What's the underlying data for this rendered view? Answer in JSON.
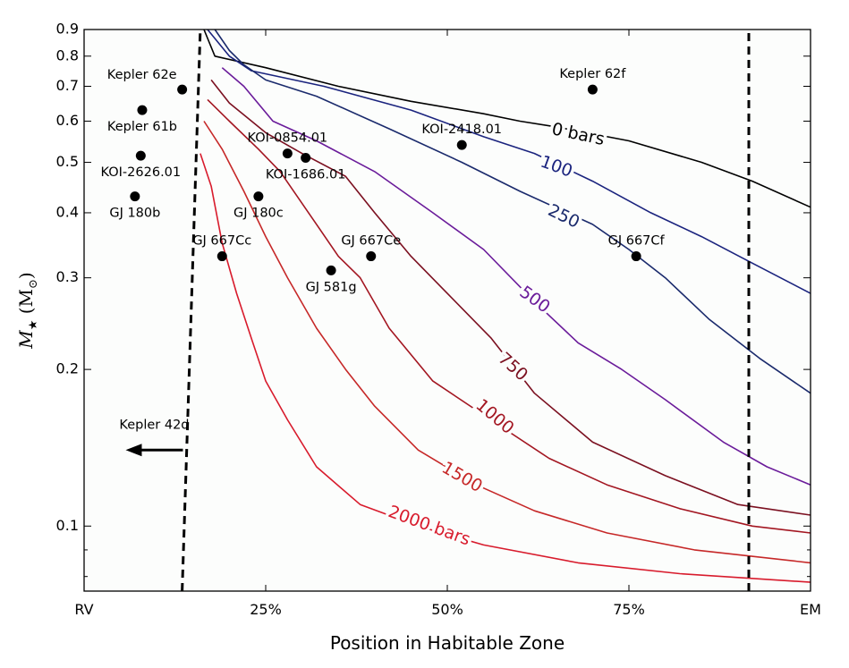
{
  "chart_data": {
    "type": "line",
    "xlabel": "Position in Habitable Zone",
    "ylabel": "M",
    "ylabel_subscript": "★",
    "ylabel_unit": "(M",
    "ylabel_unit_subscript": "⊙",
    "ylabel_unit_close": ")",
    "x_range": [
      0,
      100
    ],
    "y_range": [
      0.075,
      0.9
    ],
    "y_scale": "log",
    "x_ticks": [
      {
        "value": 0,
        "label": "RV"
      },
      {
        "value": 25,
        "label": "25%"
      },
      {
        "value": 50,
        "label": "50%"
      },
      {
        "value": 75,
        "label": "75%"
      },
      {
        "value": 100,
        "label": "EM"
      }
    ],
    "y_major_ticks": [
      {
        "value": 0.1,
        "label": "0.1"
      },
      {
        "value": 0.2,
        "label": "0.2"
      },
      {
        "value": 0.3,
        "label": "0.3"
      },
      {
        "value": 0.4,
        "label": "0.4"
      },
      {
        "value": 0.5,
        "label": "0.5"
      },
      {
        "value": 0.6,
        "label": "0.6"
      },
      {
        "value": 0.7,
        "label": "0.7"
      },
      {
        "value": 0.8,
        "label": "0.8"
      },
      {
        "value": 0.9,
        "label": "0.9"
      }
    ],
    "y_minor_ticks": [
      0.08,
      0.09
    ],
    "boundaries": [
      {
        "name": "inner-edge",
        "style": "dashed",
        "points": [
          [
            13.5,
            0.075
          ],
          [
            16,
            0.9
          ]
        ]
      },
      {
        "name": "outer-edge",
        "style": "dashed",
        "points": [
          [
            91.5,
            0.075
          ],
          [
            91.5,
            0.9
          ]
        ]
      }
    ],
    "series": [
      {
        "name": "0 bars",
        "label": "0 bars",
        "color": "#000000",
        "label_at": [
          68,
          0.565
        ],
        "label_rotation": 12,
        "points": [
          [
            16.5,
            0.9
          ],
          [
            18,
            0.8
          ],
          [
            25,
            0.76
          ],
          [
            35,
            0.7
          ],
          [
            45,
            0.655
          ],
          [
            55,
            0.62
          ],
          [
            60,
            0.6
          ],
          [
            65,
            0.585
          ],
          [
            75,
            0.55
          ],
          [
            85,
            0.5
          ],
          [
            92,
            0.46
          ],
          [
            100,
            0.41
          ]
        ]
      },
      {
        "name": "100",
        "label": "100",
        "color": "#1a237e",
        "label_at": [
          65,
          0.49
        ],
        "label_rotation": 20,
        "points": [
          [
            17,
            0.9
          ],
          [
            20,
            0.8
          ],
          [
            23,
            0.75
          ],
          [
            33,
            0.7
          ],
          [
            45,
            0.63
          ],
          [
            55,
            0.56
          ],
          [
            62,
            0.52
          ],
          [
            70,
            0.46
          ],
          [
            78,
            0.4
          ],
          [
            85,
            0.36
          ],
          [
            92,
            0.32
          ],
          [
            100,
            0.28
          ]
        ]
      },
      {
        "name": "250",
        "label": "250",
        "color": "#1a2a6c",
        "label_at": [
          66,
          0.393
        ],
        "label_rotation": 26,
        "points": [
          [
            18,
            0.9
          ],
          [
            20,
            0.82
          ],
          [
            22,
            0.77
          ],
          [
            25,
            0.72
          ],
          [
            32,
            0.67
          ],
          [
            42,
            0.58
          ],
          [
            52,
            0.5
          ],
          [
            60,
            0.44
          ],
          [
            70,
            0.38
          ],
          [
            75,
            0.34
          ],
          [
            80,
            0.3
          ],
          [
            86,
            0.25
          ],
          [
            93,
            0.21
          ],
          [
            100,
            0.18
          ]
        ]
      },
      {
        "name": "500",
        "label": "500",
        "color": "#6a1b9a",
        "label_at": [
          62,
          0.272
        ],
        "label_rotation": 36,
        "points": [
          [
            19,
            0.76
          ],
          [
            22,
            0.7
          ],
          [
            26,
            0.6
          ],
          [
            32,
            0.55
          ],
          [
            40,
            0.48
          ],
          [
            48,
            0.4
          ],
          [
            55,
            0.34
          ],
          [
            62,
            0.27
          ],
          [
            68,
            0.225
          ],
          [
            74,
            0.2
          ],
          [
            80,
            0.175
          ],
          [
            88,
            0.145
          ],
          [
            94,
            0.13
          ],
          [
            100,
            0.12
          ]
        ]
      },
      {
        "name": "750",
        "label": "750",
        "color": "#7b1020",
        "label_at": [
          59,
          0.202
        ],
        "label_rotation": 42,
        "points": [
          [
            17.5,
            0.72
          ],
          [
            20,
            0.65
          ],
          [
            25,
            0.57
          ],
          [
            30,
            0.52
          ],
          [
            36,
            0.47
          ],
          [
            40,
            0.4
          ],
          [
            45,
            0.33
          ],
          [
            50,
            0.28
          ],
          [
            56,
            0.23
          ],
          [
            62,
            0.18
          ],
          [
            70,
            0.145
          ],
          [
            80,
            0.125
          ],
          [
            90,
            0.11
          ],
          [
            100,
            0.105
          ]
        ]
      },
      {
        "name": "1000",
        "label": "1000",
        "color": "#a31621",
        "label_at": [
          56.5,
          0.162
        ],
        "label_rotation": 40,
        "points": [
          [
            17,
            0.66
          ],
          [
            20,
            0.6
          ],
          [
            24,
            0.53
          ],
          [
            27,
            0.48
          ],
          [
            32,
            0.38
          ],
          [
            35,
            0.33
          ],
          [
            38,
            0.3
          ],
          [
            42,
            0.24
          ],
          [
            48,
            0.19
          ],
          [
            56,
            0.16
          ],
          [
            64,
            0.135
          ],
          [
            72,
            0.12
          ],
          [
            82,
            0.108
          ],
          [
            92,
            0.1
          ],
          [
            100,
            0.097
          ]
        ]
      },
      {
        "name": "1500",
        "label": "1500",
        "color": "#c62828",
        "label_at": [
          52,
          0.124
        ],
        "label_rotation": 30,
        "points": [
          [
            16.5,
            0.6
          ],
          [
            19,
            0.53
          ],
          [
            22,
            0.44
          ],
          [
            25,
            0.36
          ],
          [
            28,
            0.3
          ],
          [
            32,
            0.24
          ],
          [
            36,
            0.2
          ],
          [
            40,
            0.17
          ],
          [
            46,
            0.14
          ],
          [
            54,
            0.12
          ],
          [
            62,
            0.107
          ],
          [
            72,
            0.097
          ],
          [
            84,
            0.09
          ],
          [
            100,
            0.085
          ]
        ]
      },
      {
        "name": "2000 bars",
        "label": "2000 bars",
        "color": "#d81b2c",
        "label_at": [
          47.5,
          0.1
        ],
        "label_rotation": 20,
        "points": [
          [
            16,
            0.52
          ],
          [
            17.5,
            0.45
          ],
          [
            19,
            0.35
          ],
          [
            21,
            0.28
          ],
          [
            23,
            0.23
          ],
          [
            25,
            0.19
          ],
          [
            28,
            0.16
          ],
          [
            32,
            0.13
          ],
          [
            38,
            0.11
          ],
          [
            46,
            0.1
          ],
          [
            55,
            0.092
          ],
          [
            68,
            0.085
          ],
          [
            82,
            0.081
          ],
          [
            100,
            0.078
          ]
        ]
      }
    ],
    "planets": [
      {
        "name": "Kepler 62e",
        "x": 13.5,
        "y": 0.69,
        "label_pos": "above-left"
      },
      {
        "name": "Kepler 62f",
        "x": 70,
        "y": 0.69,
        "label_pos": "above"
      },
      {
        "name": "Kepler 61b",
        "x": 8,
        "y": 0.63,
        "label_pos": "below"
      },
      {
        "name": "KOI-2418.01",
        "x": 52,
        "y": 0.54,
        "label_pos": "above"
      },
      {
        "name": "KOI-2626.01",
        "x": 7.8,
        "y": 0.515,
        "label_pos": "below"
      },
      {
        "name": "KOI-0854.01",
        "x": 28,
        "y": 0.52,
        "label_pos": "above"
      },
      {
        "name": "KOI-1686.01",
        "x": 30.5,
        "y": 0.51,
        "label_pos": "below"
      },
      {
        "name": "GJ 180b",
        "x": 7,
        "y": 0.43,
        "label_pos": "below"
      },
      {
        "name": "GJ 180c",
        "x": 24,
        "y": 0.43,
        "label_pos": "below"
      },
      {
        "name": "GJ 667Cc",
        "x": 19,
        "y": 0.33,
        "label_pos": "above"
      },
      {
        "name": "GJ 667Ce",
        "x": 39.5,
        "y": 0.33,
        "label_pos": "above"
      },
      {
        "name": "GJ 581g",
        "x": 34,
        "y": 0.31,
        "label_pos": "below"
      },
      {
        "name": "GJ 667Cf",
        "x": 76,
        "y": 0.33,
        "label_pos": "above"
      }
    ],
    "annotations": [
      {
        "name": "Kepler 42d",
        "text": "Kepler 42d",
        "arrow": "left",
        "x": 4,
        "y": 0.14
      }
    ]
  }
}
